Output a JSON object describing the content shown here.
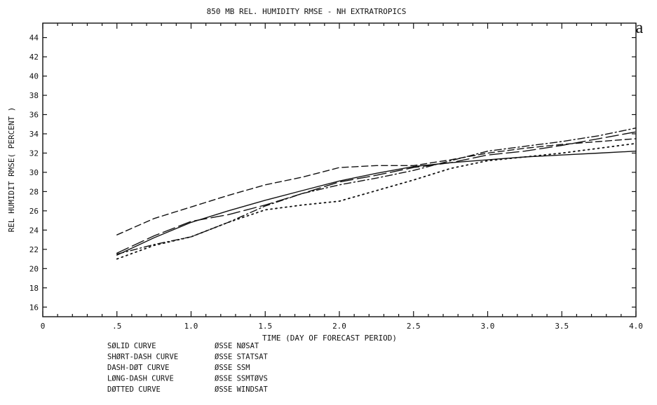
{
  "chart_data": {
    "type": "line",
    "title": "850 MB REL. HUMIDITY RMSE - NH EXTRATROPICS",
    "panel_label": "a",
    "xlabel": "TIME (DAY OF FORECAST PERIOD)",
    "ylabel": "REL HUMIDIT RMSE( PERCENT )",
    "xlim": [
      0,
      4.0
    ],
    "ylim": [
      15,
      45.5
    ],
    "x_ticks": [
      0,
      0.5,
      1.0,
      1.5,
      2.0,
      2.5,
      3.0,
      3.5,
      4.0
    ],
    "x_tick_labels": [
      "0",
      ".5",
      "1.0",
      "1.5",
      "2.0",
      "2.5",
      "3.0",
      "3.5",
      "4.0"
    ],
    "y_ticks": [
      16,
      18,
      20,
      22,
      24,
      26,
      28,
      30,
      32,
      34,
      36,
      38,
      40,
      42,
      44
    ],
    "y_tick_labels": [
      "16",
      "18",
      "20",
      "22",
      "24",
      "26",
      "28",
      "30",
      "32",
      "34",
      "36",
      "38",
      "40",
      "42",
      "44"
    ],
    "grid": false,
    "series": [
      {
        "style": "solid",
        "x": [
          0.5,
          0.75,
          1.0,
          1.25,
          1.5,
          1.75,
          2.0,
          2.25,
          2.5,
          2.75,
          3.0,
          3.25,
          3.5,
          3.75,
          4.0
        ],
        "y": [
          21.4,
          23.2,
          24.8,
          26.0,
          27.1,
          28.1,
          29.1,
          29.9,
          30.6,
          31.0,
          31.3,
          31.6,
          31.8,
          32.0,
          32.2
        ]
      },
      {
        "style": "short-dash",
        "x": [
          0.5,
          0.75,
          1.0,
          1.25,
          1.5,
          1.75,
          2.0,
          2.25,
          2.5,
          2.75,
          3.0,
          3.25,
          3.5,
          3.75,
          4.0
        ],
        "y": [
          23.5,
          25.2,
          26.4,
          27.6,
          28.7,
          29.5,
          30.5,
          30.7,
          30.7,
          31.3,
          32.0,
          32.5,
          32.9,
          33.2,
          33.5
        ]
      },
      {
        "style": "dash-dot",
        "x": [
          0.5,
          0.75,
          1.0,
          1.25,
          1.5,
          1.75,
          2.0,
          2.25,
          2.5,
          2.75,
          3.0,
          3.25,
          3.5,
          3.75,
          4.0
        ],
        "y": [
          21.5,
          22.5,
          23.3,
          24.8,
          26.5,
          27.8,
          28.7,
          29.4,
          30.2,
          31.2,
          32.2,
          32.7,
          33.2,
          33.8,
          34.6
        ]
      },
      {
        "style": "long-dash",
        "x": [
          0.5,
          0.75,
          1.0,
          1.25,
          1.5,
          1.75,
          2.0,
          2.25,
          2.5,
          2.75,
          3.0,
          3.25,
          3.5,
          3.75,
          4.0
        ],
        "y": [
          21.6,
          23.4,
          24.9,
          25.6,
          26.6,
          27.8,
          29.0,
          29.7,
          30.5,
          31.0,
          31.8,
          32.2,
          32.8,
          33.5,
          34.2
        ]
      },
      {
        "style": "dotted",
        "x": [
          0.5,
          0.75,
          1.0,
          1.25,
          1.5,
          1.75,
          2.0,
          2.25,
          2.5,
          2.75,
          3.0,
          3.25,
          3.5,
          3.75,
          4.0
        ],
        "y": [
          21.0,
          22.4,
          23.3,
          24.8,
          26.1,
          26.6,
          27.0,
          28.1,
          29.2,
          30.4,
          31.2,
          31.6,
          32.0,
          32.5,
          33.0
        ]
      }
    ],
    "legend": [
      {
        "style": "solid",
        "label": "SØLID CURVE",
        "value": "ØSSE NØSAT"
      },
      {
        "style": "short-dash",
        "label": "SHØRT-DASH CURVE",
        "value": "ØSSE STATSAT"
      },
      {
        "style": "dash-dot",
        "label": "DASH-DØT CURVE",
        "value": "ØSSE SSM"
      },
      {
        "style": "long-dash",
        "label": "LØNG-DASH CURVE",
        "value": "ØSSE SSMTØVS"
      },
      {
        "style": "dotted",
        "label": "DØTTED CURVE",
        "value": "ØSSE WINDSAT"
      }
    ]
  }
}
